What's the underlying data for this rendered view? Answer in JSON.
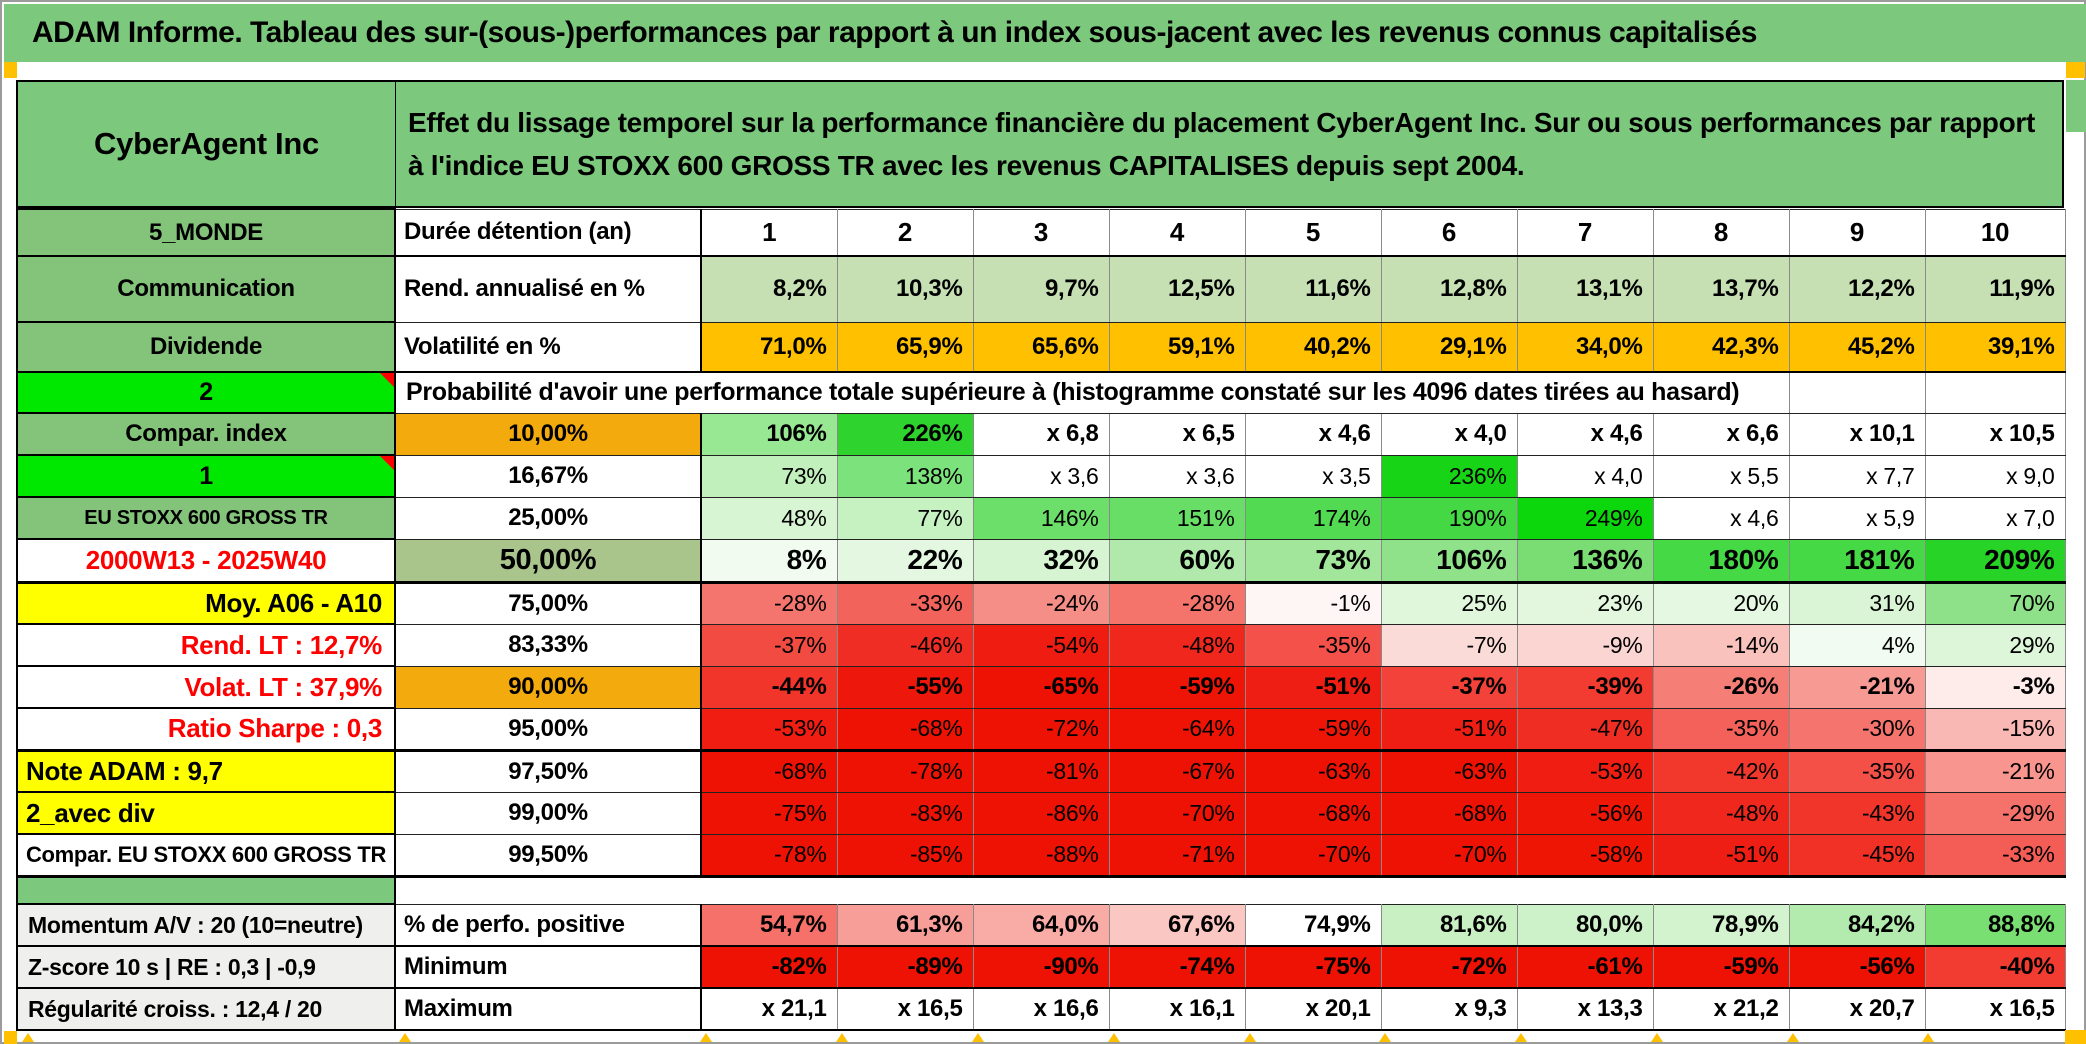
{
  "window": {
    "title": "ADAM Informe. Tableau des sur-(sous-)performances par rapport à un index sous-jacent avec les revenus connus capitalisés"
  },
  "header": {
    "company": "CyberAgent Inc",
    "description": "Effet du lissage temporel sur la performance financière du placement CyberAgent Inc. Sur ou sous performances par rapport à l'indice EU STOXX 600 GROSS TR avec les revenus CAPITALISES depuis sept 2004."
  },
  "colors": {
    "frame_green": "#7CC87D",
    "label_green": "#83C47A",
    "bright_green": "#00E800",
    "orange": "#FFC000",
    "label_orange": "#F3AA0D",
    "sage": "#A9C58B",
    "yellow": "#FFFF00",
    "full_red": "#EE1204",
    "rend_green": "#C6E0B4"
  },
  "grid": {
    "rows": [
      {
        "kind": "cols",
        "left": {
          "t": "5_MONDE",
          "k": "g"
        },
        "mid": {
          "t": "Durée détention (an)",
          "k": "l"
        },
        "values": [
          "1",
          "2",
          "3",
          "4",
          "5",
          "6",
          "7",
          "8",
          "9",
          "10"
        ]
      },
      {
        "kind": "rend",
        "left": {
          "t": "Communication",
          "k": "g"
        },
        "mid": {
          "t": "Rend. annualisé en %",
          "k": "l"
        },
        "bold": true,
        "bg": "#C6E0B4",
        "values": [
          "8,2%",
          "10,3%",
          "9,7%",
          "12,5%",
          "11,6%",
          "12,8%",
          "13,1%",
          "13,7%",
          "12,2%",
          "11,9%"
        ]
      },
      {
        "kind": "volat",
        "left": {
          "t": "Dividende",
          "k": "g"
        },
        "mid": {
          "t": "Volatilité en %",
          "k": "l"
        },
        "bold": true,
        "bg": "#FFC000",
        "values": [
          "71,0%",
          "65,9%",
          "65,6%",
          "59,1%",
          "40,2%",
          "29,1%",
          "34,0%",
          "42,3%",
          "45,2%",
          "39,1%"
        ]
      },
      {
        "kind": "span",
        "left": {
          "t": "2",
          "k": "b"
        },
        "text": "Probabilité d'avoir une performance totale supérieure à (histogramme constaté sur les 4096 dates tirées au hasard)",
        "empty_cells": 2
      },
      {
        "kind": "pct",
        "left": {
          "t": "Compar. index",
          "k": "g"
        },
        "mid": {
          "t": "10,00%",
          "k": "orange"
        },
        "bold": true,
        "values": [
          "106%",
          "226%",
          "x 6,8",
          "x 6,5",
          "x 4,6",
          "x 4,0",
          "x 4,6",
          "x 6,6",
          "x 10,1",
          "x 10,5"
        ],
        "colors": [
          "#98E793",
          "#2ED32E",
          "#FFFFFF",
          "#FFFFFF",
          "#FFFFFF",
          "#FFFFFF",
          "#FFFFFF",
          "#FFFFFF",
          "#FFFFFF",
          "#FFFFFF"
        ]
      },
      {
        "kind": "pct",
        "left": {
          "t": "1",
          "k": "b"
        },
        "mid": {
          "t": "16,67%",
          "k": "w"
        },
        "bold": false,
        "values": [
          "73%",
          "138%",
          "x 3,6",
          "x 3,6",
          "x 3,5",
          "236%",
          "x 4,0",
          "x 5,5",
          "x 7,7",
          "x 9,0"
        ],
        "colors": [
          "#C2F0BD",
          "#7CE27B",
          "#FFFFFF",
          "#FFFFFF",
          "#FFFFFF",
          "#17D417",
          "#FFFFFF",
          "#FFFFFF",
          "#FFFFFF",
          "#FFFFFF"
        ]
      },
      {
        "kind": "pct",
        "left": {
          "t": "EU STOXX 600 GROSS TR",
          "k": "g-sm"
        },
        "mid": {
          "t": "25,00%",
          "k": "w"
        },
        "bold": false,
        "values": [
          "48%",
          "77%",
          "146%",
          "151%",
          "174%",
          "190%",
          "249%",
          "x 4,6",
          "x 5,9",
          "x 7,0"
        ],
        "colors": [
          "#D8F5D3",
          "#C6F1C1",
          "#6CDF6B",
          "#68DE67",
          "#53DA53",
          "#44D944",
          "#0CD60C",
          "#FFFFFF",
          "#FFFFFF",
          "#FFFFFF"
        ]
      },
      {
        "kind": "pctbig",
        "left": {
          "t": "2000W13 - 2025W40",
          "k": "r"
        },
        "mid": {
          "t": "50,00%",
          "k": "sage"
        },
        "bold": true,
        "values": [
          "8%",
          "22%",
          "32%",
          "60%",
          "73%",
          "106%",
          "136%",
          "180%",
          "181%",
          "209%"
        ],
        "colors": [
          "#F2FBF0",
          "#E4F8E1",
          "#D7F4D2",
          "#B0E9AB",
          "#A2E69C",
          "#90E28A",
          "#79DD73",
          "#46D946",
          "#45D945",
          "#27D327"
        ]
      },
      {
        "kind": "pct",
        "left": {
          "t": "Moy. A06 - A10",
          "k": "y-r"
        },
        "mid": {
          "t": "75,00%",
          "k": "w"
        },
        "bold": false,
        "values": [
          "-28%",
          "-33%",
          "-24%",
          "-28%",
          "-1%",
          "25%",
          "23%",
          "20%",
          "31%",
          "70%"
        ],
        "colors": [
          "#F4756D",
          "#F2635B",
          "#F68E88",
          "#F4746C",
          "#FDF6F5",
          "#E0F7DC",
          "#E2F7DE",
          "#E5F8E1",
          "#DAF5D5",
          "#8EE188"
        ]
      },
      {
        "kind": "pct",
        "left": {
          "t": "Rend. LT :   12,7%",
          "k": "w-r"
        },
        "mid": {
          "t": "83,33%",
          "k": "w"
        },
        "bold": false,
        "values": [
          "-37%",
          "-46%",
          "-54%",
          "-48%",
          "-35%",
          "-7%",
          "-9%",
          "-14%",
          "4%",
          "29%"
        ],
        "colors": [
          "#F24B42",
          "#F02D24",
          "#EF1C12",
          "#F0271D",
          "#F35149",
          "#FBDBD8",
          "#FBD5D2",
          "#F9C2BD",
          "#F2FBF1",
          "#DDF6D9"
        ]
      },
      {
        "kind": "pct",
        "left": {
          "t": "Volat. LT :   37,9%",
          "k": "w-r"
        },
        "mid": {
          "t": "90,00%",
          "k": "orange"
        },
        "bold": true,
        "values": [
          "-44%",
          "-55%",
          "-65%",
          "-59%",
          "-51%",
          "-37%",
          "-39%",
          "-26%",
          "-21%",
          "-3%"
        ],
        "colors": [
          "#F1352B",
          "#EE170C",
          "#EE1204",
          "#EE1506",
          "#EF1E14",
          "#F24239",
          "#F23B31",
          "#F57F77",
          "#F79A94",
          "#FDECEA"
        ]
      },
      {
        "kind": "pct",
        "left": {
          "t": "Ratio Sharpe :   0,3",
          "k": "w-r"
        },
        "mid": {
          "t": "95,00%",
          "k": "w"
        },
        "bold": false,
        "thick_bottom": true,
        "values": [
          "-53%",
          "-68%",
          "-72%",
          "-64%",
          "-59%",
          "-51%",
          "-47%",
          "-35%",
          "-30%",
          "-15%"
        ],
        "colors": [
          "#EF1D12",
          "#EE1204",
          "#EE1204",
          "#EE1305",
          "#EE1506",
          "#EF1E14",
          "#F02D23",
          "#F4615A",
          "#F5746D",
          "#F9B8B3"
        ]
      },
      {
        "kind": "pct",
        "left": {
          "t": "Note ADAM : 9,7",
          "k": "y-l"
        },
        "mid": {
          "t": "97,50%",
          "k": "w"
        },
        "bold": false,
        "values": [
          "-68%",
          "-78%",
          "-81%",
          "-67%",
          "-63%",
          "-63%",
          "-53%",
          "-42%",
          "-35%",
          "-21%"
        ],
        "colors": [
          "#EE1204",
          "#EE1204",
          "#EE1204",
          "#EE1204",
          "#EE1204",
          "#EE1204",
          "#EF1D12",
          "#F2382D",
          "#F45047",
          "#F7958E"
        ]
      },
      {
        "kind": "pct",
        "left": {
          "t": "2_avec div",
          "k": "y-l"
        },
        "mid": {
          "t": "99,00%",
          "k": "w"
        },
        "bold": false,
        "values": [
          "-75%",
          "-83%",
          "-86%",
          "-70%",
          "-68%",
          "-68%",
          "-56%",
          "-48%",
          "-43%",
          "-29%"
        ],
        "colors": [
          "#EE1204",
          "#EE1204",
          "#EE1204",
          "#EE1204",
          "#EE1204",
          "#EE1204",
          "#EE1606",
          "#F0271D",
          "#F1352B",
          "#F5726A"
        ]
      },
      {
        "kind": "pct",
        "left": {
          "t": "Compar. EU STOXX 600 GROSS TR",
          "k": "w-c"
        },
        "mid": {
          "t": "99,50%",
          "k": "w"
        },
        "bold": false,
        "thick_bottom": true,
        "values": [
          "-78%",
          "-85%",
          "-88%",
          "-71%",
          "-70%",
          "-70%",
          "-58%",
          "-51%",
          "-45%",
          "-33%"
        ],
        "colors": [
          "#EE1204",
          "#EE1204",
          "#EE1204",
          "#EE1204",
          "#EE1204",
          "#EE1204",
          "#EE1505",
          "#EF1E14",
          "#F13026",
          "#F35D55"
        ]
      },
      {
        "kind": "sep",
        "left": {
          "t": "",
          "k": "sep"
        }
      },
      {
        "kind": "bottom",
        "left": {
          "t": "Momentum A/V : 20 (10=neutre)",
          "k": "gray"
        },
        "mid": {
          "t": "% de perfo. positive",
          "k": "l"
        },
        "bold": true,
        "values": [
          "54,7%",
          "61,3%",
          "64,0%",
          "67,6%",
          "74,9%",
          "81,6%",
          "80,0%",
          "78,9%",
          "84,2%",
          "88,8%"
        ],
        "colors": [
          "#F5716A",
          "#F89E98",
          "#F9ABA5",
          "#FBC7C3",
          "#FFFFFF",
          "#C8F0C3",
          "#CDF1C8",
          "#D3F3CE",
          "#B3EAAD",
          "#79DF72"
        ]
      },
      {
        "kind": "bottom",
        "left": {
          "t": "Z-score 10 s | RE : 0,3 | -0,9",
          "k": "gray"
        },
        "mid": {
          "t": "Minimum",
          "k": "l"
        },
        "bold": true,
        "values": [
          "-82%",
          "-89%",
          "-90%",
          "-74%",
          "-75%",
          "-72%",
          "-61%",
          "-59%",
          "-56%",
          "-40%"
        ],
        "colors": [
          "#EE1204",
          "#EE1204",
          "#EE1204",
          "#EE1204",
          "#EE1204",
          "#EE1204",
          "#EE1204",
          "#EE1204",
          "#EE1204",
          "#F23C31"
        ]
      },
      {
        "kind": "bottom",
        "left": {
          "t": "Régularité croiss. : 12,4 / 20",
          "k": "gray"
        },
        "mid": {
          "t": "Maximum",
          "k": "l"
        },
        "bold": true,
        "values": [
          "x 21,1",
          "x 16,5",
          "x 16,6",
          "x 16,1",
          "x 20,1",
          "x 9,3",
          "x 13,3",
          "x 21,2",
          "x 20,7",
          "x 16,5"
        ],
        "colors": [
          "#FFFFFF",
          "#FFFFFF",
          "#FFFFFF",
          "#FFFFFF",
          "#FFFFFF",
          "#FFFFFF",
          "#FFFFFF",
          "#FFFFFF",
          "#FFFFFF",
          "#FFFFFF"
        ]
      }
    ]
  }
}
